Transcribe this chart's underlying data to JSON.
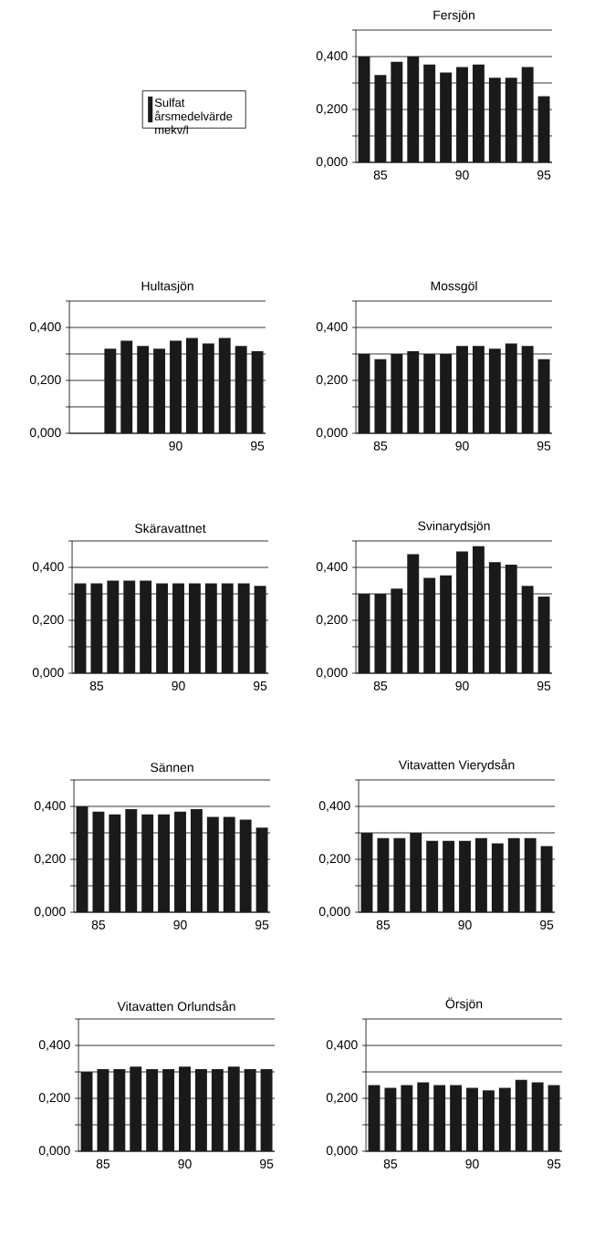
{
  "chart_data": [
    {
      "type": "bar",
      "title": "Fersjön",
      "categories": [
        null,
        "85",
        null,
        null,
        null,
        null,
        "90",
        null,
        null,
        null,
        null,
        "95"
      ],
      "ylim": [
        0,
        0.5
      ],
      "yticks": [
        {
          "value": 0,
          "label": "0,000"
        },
        {
          "value": 0.1,
          "label": null
        },
        {
          "value": 0.2,
          "label": "0,200"
        },
        {
          "value": 0.3,
          "label": null
        },
        {
          "value": 0.4,
          "label": "0,400"
        },
        {
          "value": 0.5,
          "label": null
        }
      ],
      "grid": "y",
      "legend": "left",
      "series": [
        {
          "name": "Sulfat årsmedelvärde mekv/l",
          "color": "#1a1a1a",
          "values": [
            0.4,
            0.33,
            0.38,
            0.4,
            0.37,
            0.34,
            0.36,
            0.37,
            0.32,
            0.32,
            0.36,
            0.25
          ]
        }
      ]
    },
    {
      "type": "bar",
      "title": "Hultasjön",
      "categories": [
        null,
        null,
        null,
        null,
        null,
        null,
        "90",
        null,
        null,
        null,
        null,
        "95"
      ],
      "ylim": [
        0,
        0.5
      ],
      "yticks": [
        {
          "value": 0,
          "label": "0,000"
        },
        {
          "value": 0.1,
          "label": null
        },
        {
          "value": 0.2,
          "label": "0,200"
        },
        {
          "value": 0.3,
          "label": null
        },
        {
          "value": 0.4,
          "label": "0,400"
        },
        {
          "value": 0.5,
          "label": null
        }
      ],
      "grid": "y",
      "series": [
        {
          "color": "#1a1a1a",
          "values": [
            null,
            null,
            0.32,
            0.35,
            0.33,
            0.32,
            0.35,
            0.36,
            0.34,
            0.36,
            0.33,
            0.31
          ]
        }
      ]
    },
    {
      "type": "bar",
      "title": "Mossgöl",
      "categories": [
        null,
        "85",
        null,
        null,
        null,
        null,
        "90",
        null,
        null,
        null,
        null,
        "95"
      ],
      "ylim": [
        0,
        0.5
      ],
      "yticks": [
        {
          "value": 0,
          "label": "0,000"
        },
        {
          "value": 0.1,
          "label": null
        },
        {
          "value": 0.2,
          "label": "0,200"
        },
        {
          "value": 0.3,
          "label": null
        },
        {
          "value": 0.4,
          "label": "0,400"
        },
        {
          "value": 0.5,
          "label": null
        }
      ],
      "grid": "y",
      "series": [
        {
          "color": "#1a1a1a",
          "values": [
            0.3,
            0.28,
            0.3,
            0.31,
            0.3,
            0.3,
            0.33,
            0.33,
            0.32,
            0.34,
            0.33,
            0.28
          ]
        }
      ]
    },
    {
      "type": "bar",
      "title": "Skäravattnet",
      "categories": [
        null,
        "85",
        null,
        null,
        null,
        null,
        "90",
        null,
        null,
        null,
        null,
        "95"
      ],
      "ylim": [
        0,
        0.5
      ],
      "yticks": [
        {
          "value": 0,
          "label": "0,000"
        },
        {
          "value": 0.1,
          "label": null
        },
        {
          "value": 0.2,
          "label": "0,200"
        },
        {
          "value": 0.3,
          "label": null
        },
        {
          "value": 0.4,
          "label": "0,400"
        },
        {
          "value": 0.5,
          "label": null
        }
      ],
      "grid": "y",
      "series": [
        {
          "color": "#1a1a1a",
          "values": [
            0.34,
            0.34,
            0.35,
            0.35,
            0.35,
            0.34,
            0.34,
            0.34,
            0.34,
            0.34,
            0.34,
            0.33
          ]
        }
      ]
    },
    {
      "type": "bar",
      "title": "Svinarydsjön",
      "categories": [
        null,
        "85",
        null,
        null,
        null,
        null,
        "90",
        null,
        null,
        null,
        null,
        "95"
      ],
      "ylim": [
        0,
        0.5
      ],
      "yticks": [
        {
          "value": 0,
          "label": "0,000"
        },
        {
          "value": 0.1,
          "label": null
        },
        {
          "value": 0.2,
          "label": "0,200"
        },
        {
          "value": 0.3,
          "label": null
        },
        {
          "value": 0.4,
          "label": "0,400"
        },
        {
          "value": 0.5,
          "label": null
        }
      ],
      "grid": "y",
      "series": [
        {
          "color": "#1a1a1a",
          "values": [
            0.3,
            0.3,
            0.32,
            0.45,
            0.36,
            0.37,
            0.46,
            0.48,
            0.42,
            0.41,
            0.33,
            0.29
          ]
        }
      ]
    },
    {
      "type": "bar",
      "title": "Sännen",
      "categories": [
        null,
        "85",
        null,
        null,
        null,
        null,
        "90",
        null,
        null,
        null,
        null,
        "95"
      ],
      "ylim": [
        0,
        0.5
      ],
      "yticks": [
        {
          "value": 0,
          "label": "0,000"
        },
        {
          "value": 0.1,
          "label": null
        },
        {
          "value": 0.2,
          "label": "0,200"
        },
        {
          "value": 0.3,
          "label": null
        },
        {
          "value": 0.4,
          "label": "0,400"
        },
        {
          "value": 0.5,
          "label": null
        }
      ],
      "grid": "y",
      "series": [
        {
          "color": "#1a1a1a",
          "values": [
            0.4,
            0.38,
            0.37,
            0.39,
            0.37,
            0.37,
            0.38,
            0.39,
            0.36,
            0.36,
            0.35,
            0.32
          ]
        }
      ]
    },
    {
      "type": "bar",
      "title": "Vitavatten Vierydsån",
      "categories": [
        null,
        "85",
        null,
        null,
        null,
        null,
        "90",
        null,
        null,
        null,
        null,
        "95"
      ],
      "ylim": [
        0,
        0.5
      ],
      "yticks": [
        {
          "value": 0,
          "label": "0,000"
        },
        {
          "value": 0.1,
          "label": null
        },
        {
          "value": 0.2,
          "label": "0,200"
        },
        {
          "value": 0.3,
          "label": null
        },
        {
          "value": 0.4,
          "label": "0,400"
        },
        {
          "value": 0.5,
          "label": null
        }
      ],
      "grid": "y",
      "series": [
        {
          "color": "#1a1a1a",
          "values": [
            0.3,
            0.28,
            0.28,
            0.3,
            0.27,
            0.27,
            0.27,
            0.28,
            0.26,
            0.28,
            0.28,
            0.25
          ]
        }
      ]
    },
    {
      "type": "bar",
      "title": "Vitavatten Orlundsån",
      "categories": [
        null,
        "85",
        null,
        null,
        null,
        null,
        "90",
        null,
        null,
        null,
        null,
        "95"
      ],
      "ylim": [
        0,
        0.5
      ],
      "yticks": [
        {
          "value": 0,
          "label": "0,000"
        },
        {
          "value": 0.1,
          "label": null
        },
        {
          "value": 0.2,
          "label": "0,200"
        },
        {
          "value": 0.3,
          "label": null
        },
        {
          "value": 0.4,
          "label": "0,400"
        },
        {
          "value": 0.5,
          "label": null
        }
      ],
      "grid": "y",
      "series": [
        {
          "color": "#1a1a1a",
          "values": [
            0.3,
            0.31,
            0.31,
            0.32,
            0.31,
            0.31,
            0.32,
            0.31,
            0.31,
            0.32,
            0.31,
            0.31
          ]
        }
      ]
    },
    {
      "type": "bar",
      "title": "Örsjön",
      "categories": [
        null,
        "85",
        null,
        null,
        null,
        null,
        "90",
        null,
        null,
        null,
        null,
        "95"
      ],
      "ylim": [
        0,
        0.5
      ],
      "yticks": [
        {
          "value": 0,
          "label": "0,000"
        },
        {
          "value": 0.1,
          "label": null
        },
        {
          "value": 0.2,
          "label": "0,200"
        },
        {
          "value": 0.3,
          "label": null
        },
        {
          "value": 0.4,
          "label": "0,400"
        },
        {
          "value": 0.5,
          "label": null
        }
      ],
      "grid": "y",
      "series": [
        {
          "color": "#1a1a1a",
          "values": [
            0.25,
            0.24,
            0.25,
            0.26,
            0.25,
            0.25,
            0.24,
            0.23,
            0.24,
            0.27,
            0.26,
            0.25
          ]
        }
      ]
    }
  ]
}
